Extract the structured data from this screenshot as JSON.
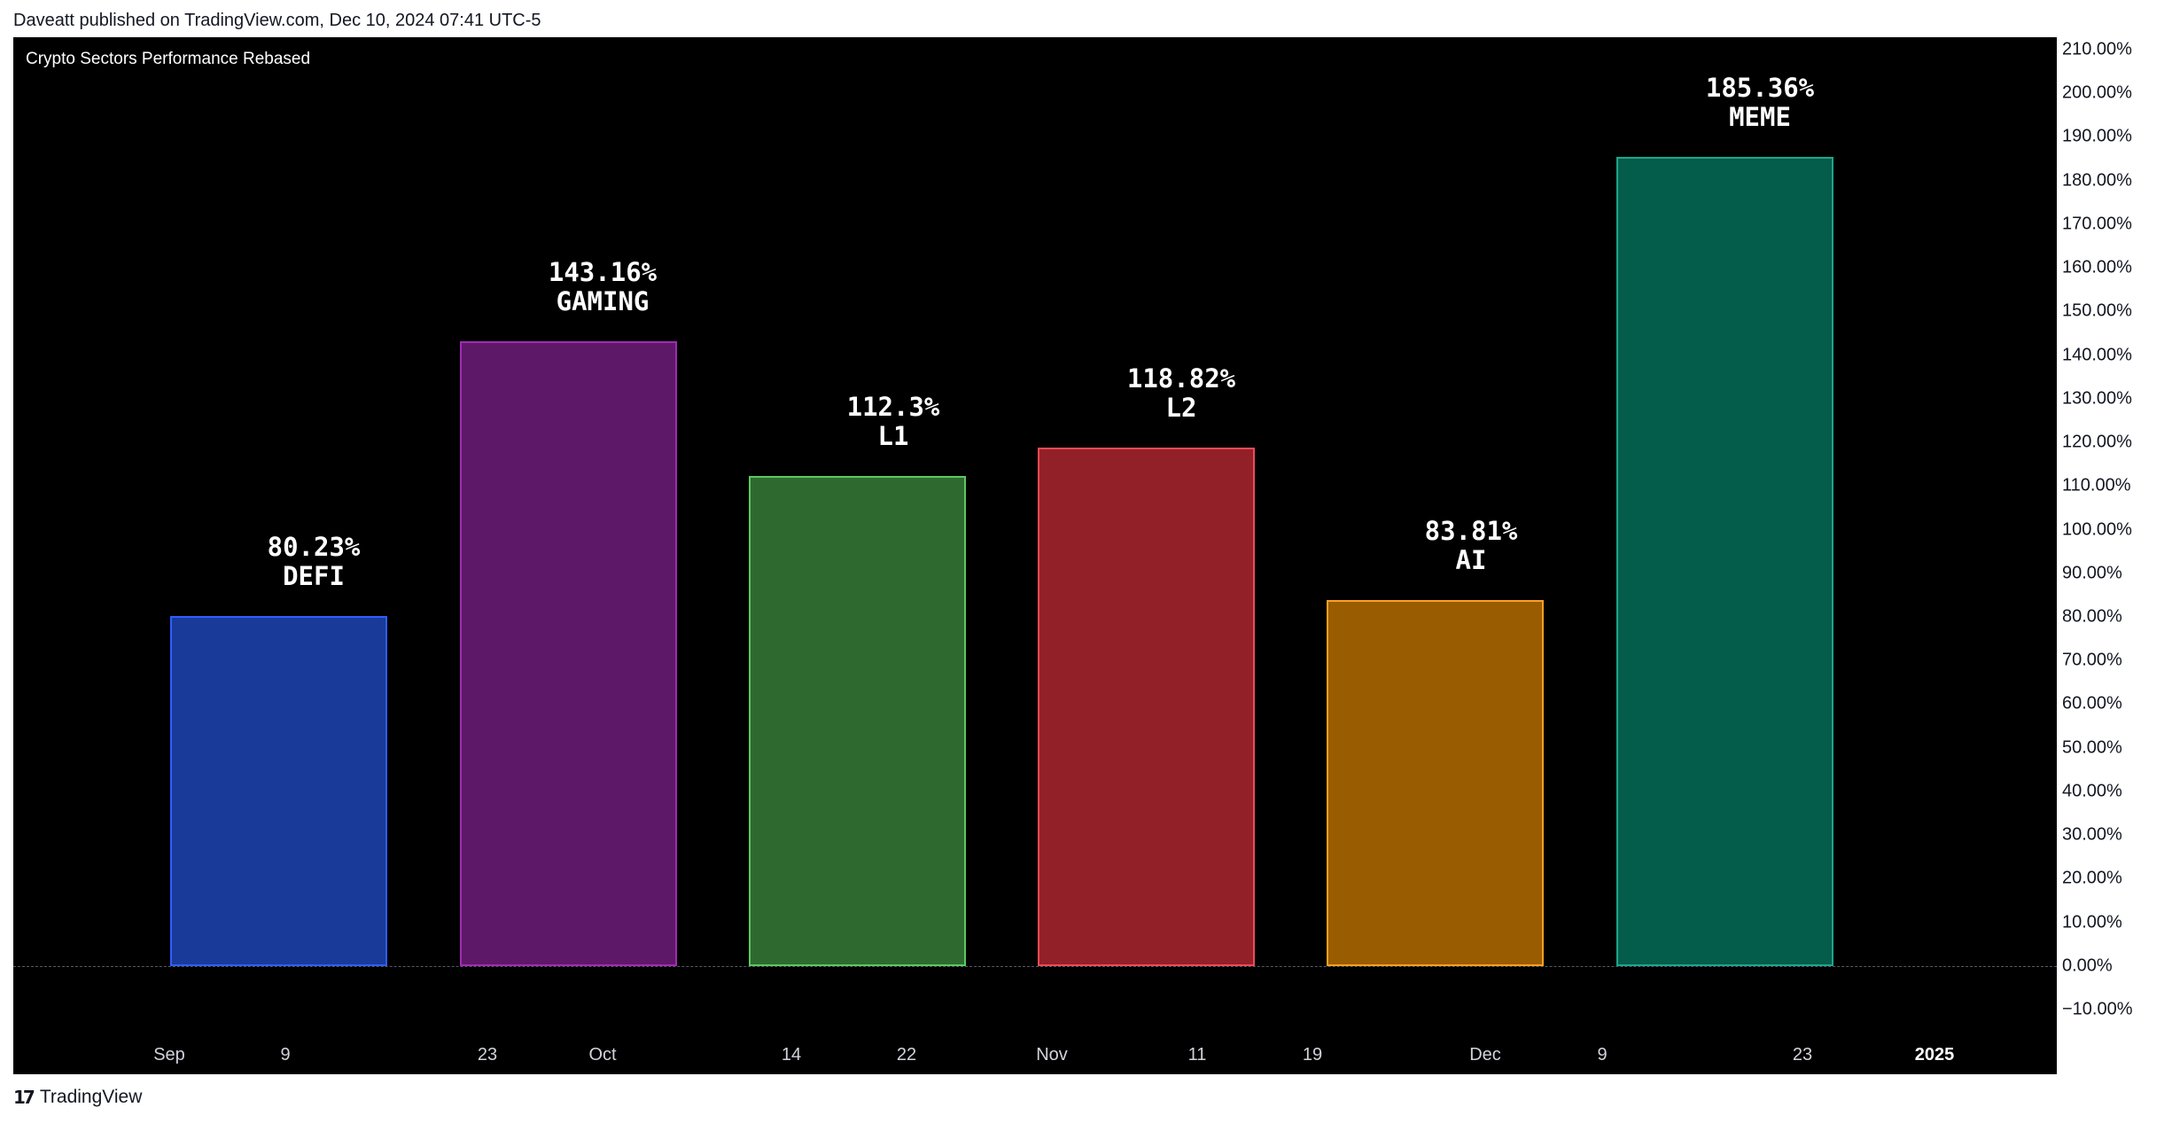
{
  "header": {
    "publisher_line": "Daveatt published on TradingView.com, Dec 10, 2024 07:41 UTC-5"
  },
  "footer": {
    "brand": "TradingView",
    "logo_icon": "tradingview-logo-icon"
  },
  "chart_data": {
    "type": "bar",
    "title": "Crypto Sectors Performance Rebased",
    "categories": [
      "DEFI",
      "GAMING",
      "L1",
      "L2",
      "AI",
      "MEME"
    ],
    "values": [
      80.23,
      143.16,
      112.3,
      118.82,
      83.81,
      185.36
    ],
    "value_labels": [
      "80.23%",
      "143.16%",
      "112.3%",
      "118.82%",
      "83.81%",
      "185.36%"
    ],
    "colors": [
      {
        "fill": "#1a3a9a",
        "border": "#2f5eff"
      },
      {
        "fill": "#5e1868",
        "border": "#a02cb4"
      },
      {
        "fill": "#2e6a30",
        "border": "#5cc860"
      },
      {
        "fill": "#922028",
        "border": "#ef4a55"
      },
      {
        "fill": "#9a5c00",
        "border": "#ffa020"
      },
      {
        "fill": "#045c4a",
        "border": "#1fa58a"
      }
    ],
    "ylim": [
      -10,
      210
    ],
    "y_ticks": [
      "210.00%",
      "200.00%",
      "190.00%",
      "180.00%",
      "170.00%",
      "160.00%",
      "150.00%",
      "140.00%",
      "130.00%",
      "120.00%",
      "110.00%",
      "100.00%",
      "90.00%",
      "80.00%",
      "70.00%",
      "60.00%",
      "50.00%",
      "40.00%",
      "30.00%",
      "20.00%",
      "10.00%",
      "0.00%",
      "−10.00%"
    ],
    "y_tick_values": [
      210,
      200,
      190,
      180,
      170,
      160,
      150,
      140,
      130,
      120,
      110,
      100,
      90,
      80,
      70,
      60,
      50,
      40,
      30,
      20,
      10,
      0,
      -10
    ],
    "x_tick_labels": [
      "Sep",
      "9",
      "23",
      "Oct",
      "14",
      "22",
      "Nov",
      "11",
      "19",
      "Dec",
      "9",
      "23",
      "2025"
    ],
    "x_tick_bold": [
      false,
      false,
      false,
      false,
      false,
      false,
      false,
      false,
      false,
      false,
      false,
      false,
      true
    ],
    "background": "#000000",
    "grid": false
  }
}
